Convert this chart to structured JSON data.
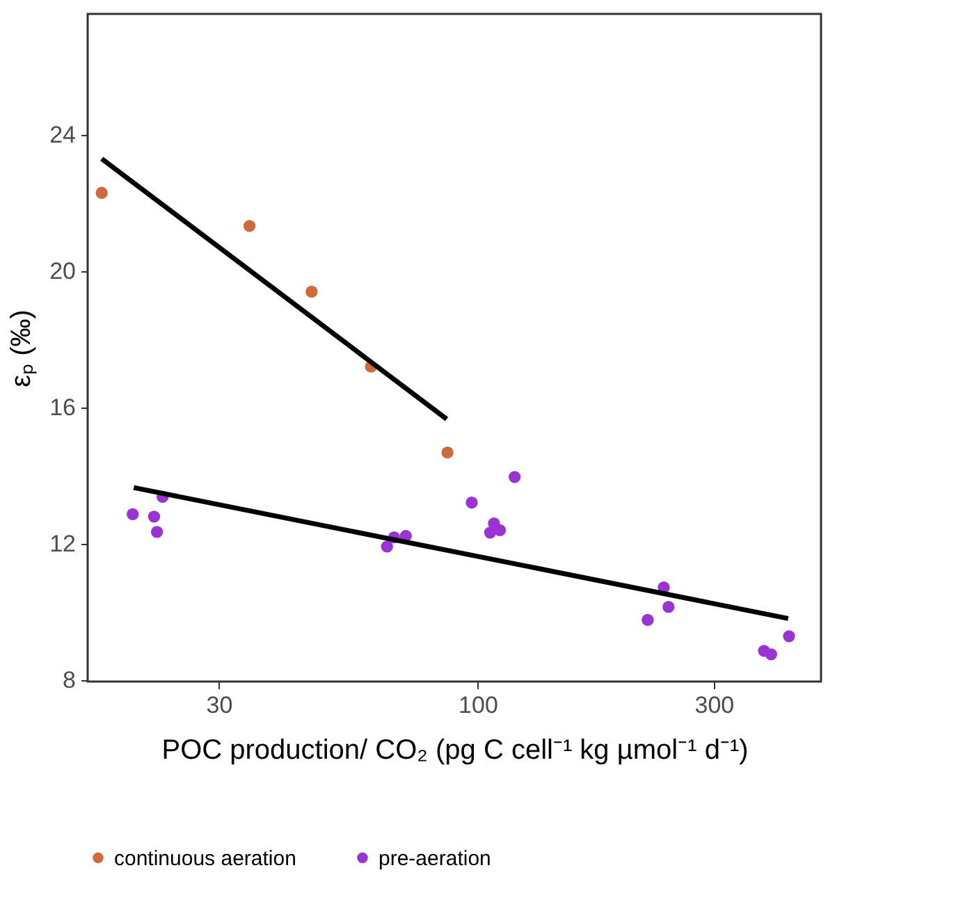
{
  "chart_data": {
    "type": "scatter",
    "xlabel": "POC production/ CO₂ (pg C cell⁻¹ kg µmol⁻¹ d⁻¹)",
    "ylabel": "εₚ (‰)",
    "log": "x",
    "xlim": [
      16.3,
      494
    ],
    "xticks": [
      30,
      100,
      300
    ],
    "ylim": [
      7.96,
      27.55
    ],
    "yticks": [
      8,
      12,
      16,
      20,
      24
    ],
    "grid": false,
    "legend": "bottom",
    "series": [
      {
        "name": "continuous aeration",
        "marker": "circle",
        "color": "#d2693a",
        "x": [
          17.4,
          34.6,
          46.2,
          60.9,
          86.9
        ],
        "values": [
          22.3,
          21.33,
          19.4,
          17.2,
          14.68
        ]
      },
      {
        "name": "pre-aeration",
        "marker": "circle",
        "color": "#9b32d6",
        "x": [
          20.1,
          23.1,
          22.2,
          22.5,
          65.6,
          67.8,
          71.6,
          97.3,
          107.9,
          106,
          110.9,
          118.8,
          237.7,
          243,
          220.6,
          379,
          391.7,
          425.7
        ],
        "values": [
          12.87,
          13.38,
          12.8,
          12.35,
          11.92,
          12.19,
          12.23,
          13.21,
          12.6,
          12.33,
          12.4,
          13.96,
          10.72,
          10.15,
          9.77,
          8.86,
          8.76,
          9.29
        ]
      },
      {
        "type": "line",
        "marker": "none",
        "line_style": "solid",
        "color": "#000000",
        "x": [
          17.4,
          86.6
        ],
        "values": [
          23.3,
          15.66
        ]
      },
      {
        "type": "line",
        "marker": "none",
        "line_style": "solid",
        "color": "#000000",
        "x": [
          20.2,
          424
        ],
        "values": [
          13.65,
          9.81
        ]
      }
    ]
  }
}
